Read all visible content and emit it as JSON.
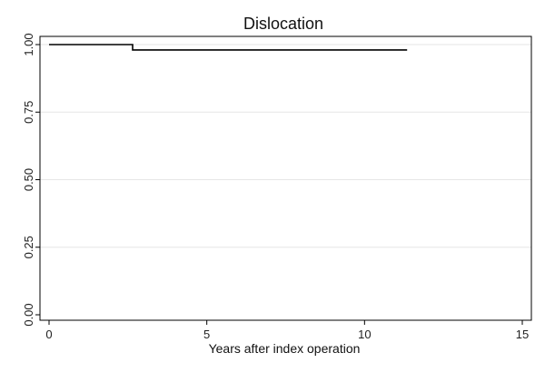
{
  "chart_data": {
    "type": "line",
    "title": "Dislocation",
    "xlabel": "Years after index operation",
    "ylabel": "",
    "xlim": [
      0,
      15
    ],
    "ylim": [
      0,
      1
    ],
    "x_ticks": [
      0,
      5,
      10,
      15
    ],
    "y_ticks": [
      0,
      0.25,
      0.5,
      0.75,
      1
    ],
    "x_tick_labels": [
      "0",
      "5",
      "10",
      "15"
    ],
    "y_tick_labels": [
      "0.00",
      "0.25",
      "0.50",
      "0.75",
      "1.00"
    ],
    "grid": "horizontal",
    "series": [
      {
        "style": "step",
        "color": "#000000",
        "x": [
          0,
          2.65,
          2.65,
          11.35
        ],
        "y": [
          1.0,
          1.0,
          0.98,
          0.98
        ]
      }
    ]
  }
}
